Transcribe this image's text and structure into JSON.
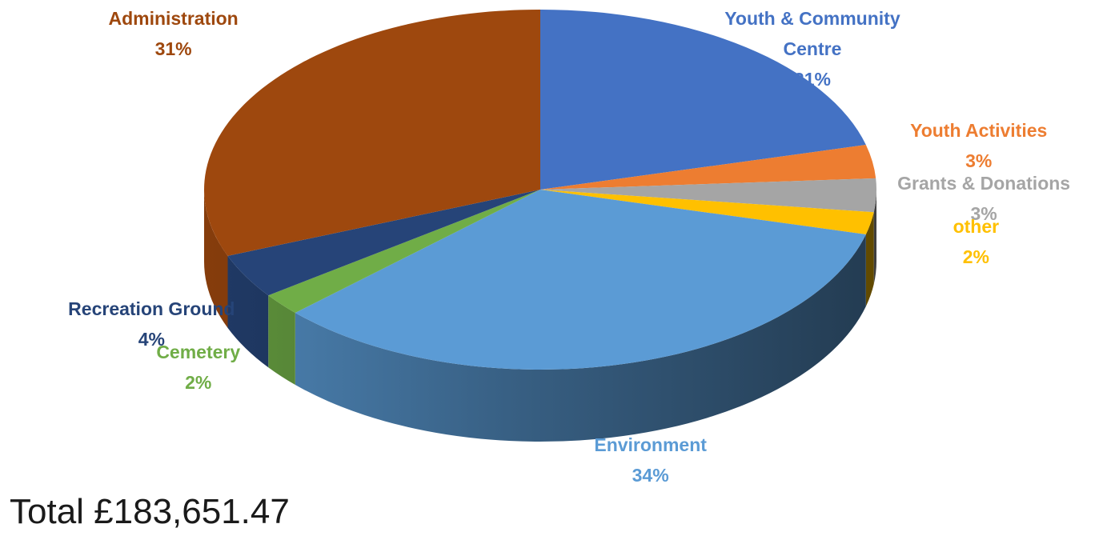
{
  "chart_data": {
    "type": "pie",
    "style": "3d",
    "slices": [
      {
        "label_lines": [
          "Youth & Community",
          "Centre"
        ],
        "pct_label": "21%",
        "value": 21,
        "color": "#4472c4"
      },
      {
        "label_lines": [
          "Youth Activities"
        ],
        "pct_label": "3%",
        "value": 3,
        "color": "#ed7d31"
      },
      {
        "label_lines": [
          "Grants & Donations"
        ],
        "pct_label": "3%",
        "value": 3,
        "color": "#a5a5a5"
      },
      {
        "label_lines": [
          "other"
        ],
        "pct_label": "2%",
        "value": 2,
        "color": "#ffc000"
      },
      {
        "label_lines": [
          "Environment"
        ],
        "pct_label": "34%",
        "value": 34,
        "color": "#5b9bd5"
      },
      {
        "label_lines": [
          "Cemetery"
        ],
        "pct_label": "2%",
        "value": 2,
        "color": "#70ad47"
      },
      {
        "label_lines": [
          "Recreation Ground"
        ],
        "pct_label": "4%",
        "value": 4,
        "color": "#264478"
      },
      {
        "label_lines": [
          "Administration"
        ],
        "pct_label": "31%",
        "value": 31,
        "color": "#9e480e"
      }
    ],
    "total_text": "Total £183,651.47"
  }
}
